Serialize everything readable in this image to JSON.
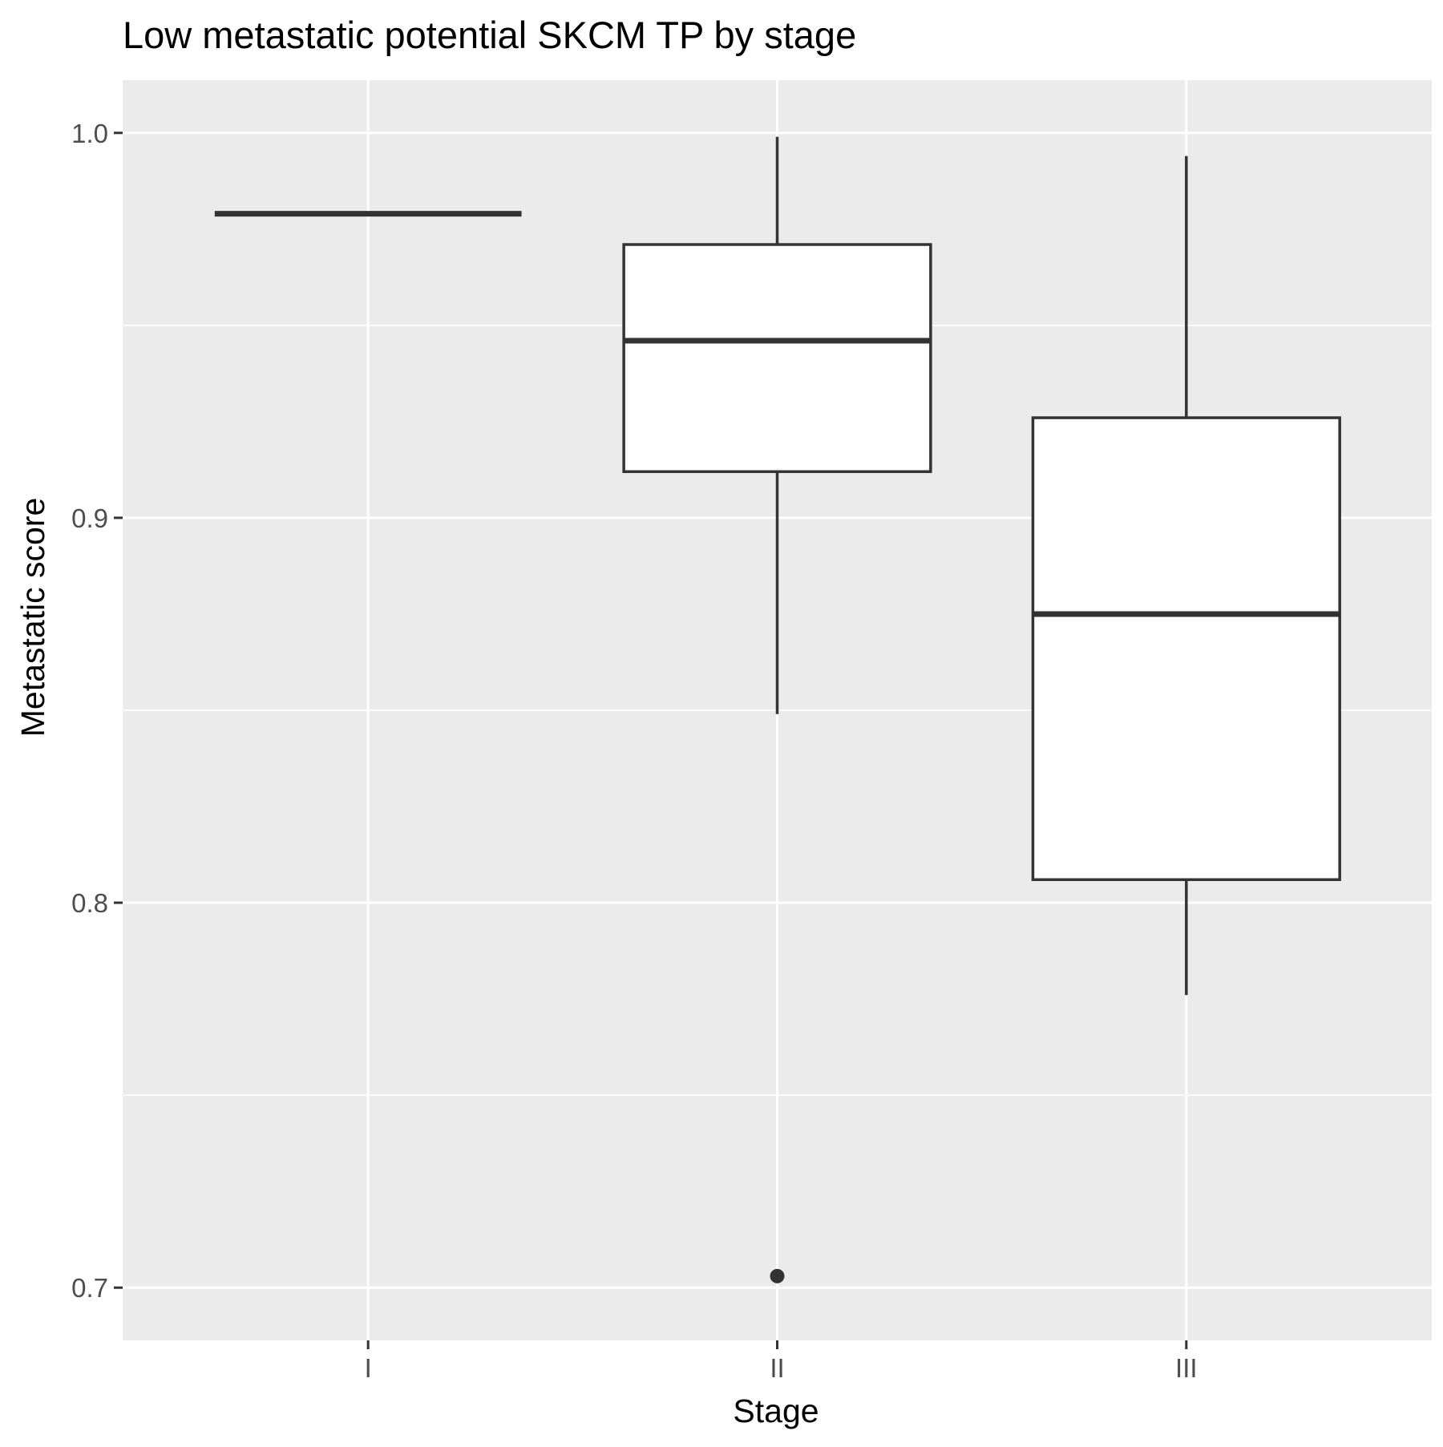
{
  "chart_data": {
    "type": "box",
    "title": "Low metastatic potential SKCM TP by stage",
    "xlabel": "Stage",
    "ylabel": "Metastatic score",
    "categories": [
      "I",
      "II",
      "III"
    ],
    "yticks": [
      0.7,
      0.8,
      0.9,
      1.0
    ],
    "ytick_labels": [
      "0.7",
      "0.8",
      "0.9",
      "1.0"
    ],
    "ylim": [
      0.6863,
      1.0137
    ],
    "grid": true,
    "boxes": [
      {
        "category": "I",
        "min": 0.979,
        "q1": 0.979,
        "median": 0.979,
        "q3": 0.979,
        "max": 0.979,
        "outliers": []
      },
      {
        "category": "II",
        "min": 0.849,
        "q1": 0.912,
        "median": 0.946,
        "q3": 0.971,
        "max": 0.999,
        "outliers": [
          0.703
        ]
      },
      {
        "category": "III",
        "min": 0.776,
        "q1": 0.806,
        "median": 0.875,
        "q3": 0.926,
        "max": 0.994,
        "outliers": []
      }
    ],
    "colors": {
      "panel_background": "#ebebeb",
      "grid": "#ffffff",
      "box_fill": "#ffffff",
      "box_stroke": "#333333",
      "tick_mark": "#333333"
    }
  }
}
